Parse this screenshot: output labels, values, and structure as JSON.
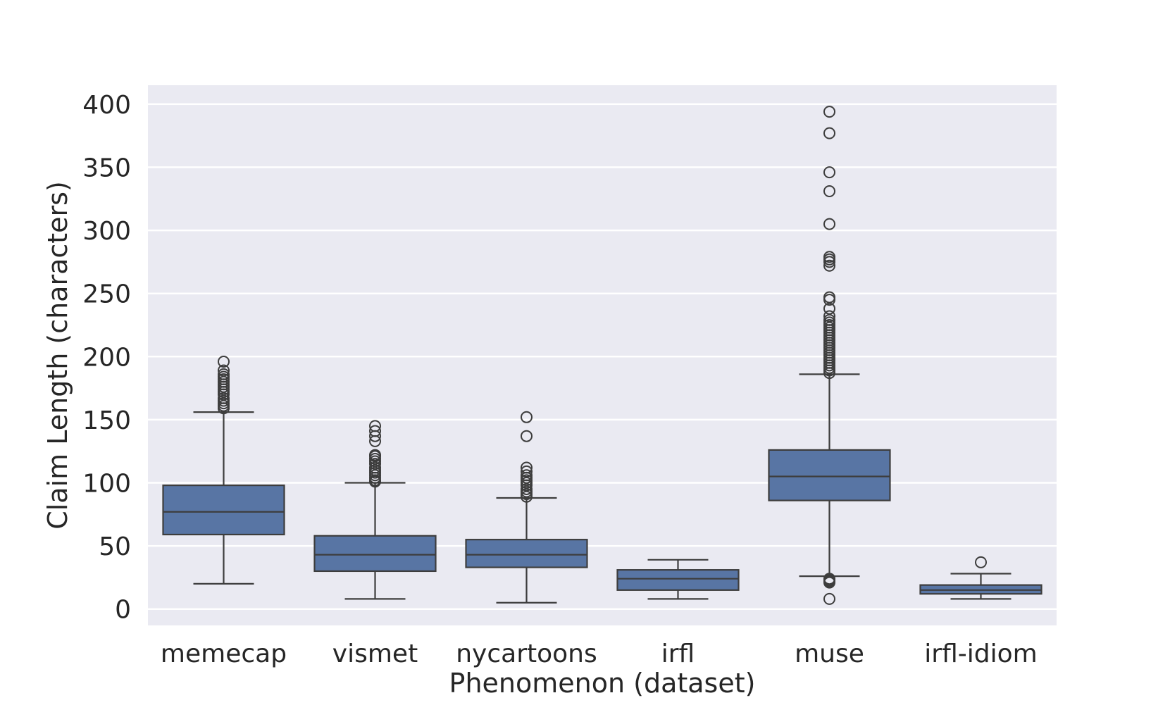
{
  "chart_data": {
    "type": "boxplot",
    "title": "",
    "xlabel": "Phenomenon (dataset)",
    "ylabel": "Claim Length (characters)",
    "ylim": [
      -13,
      415
    ],
    "yticks": [
      0,
      50,
      100,
      150,
      200,
      250,
      300,
      350,
      400
    ],
    "grid": true,
    "colors": {
      "background": "#eaeaf2",
      "box_fill": "#5875a4",
      "line": "#3d3d3d",
      "grid": "#ffffff"
    },
    "categories": [
      "memecap",
      "vismet",
      "nycartoons",
      "irfl",
      "muse",
      "irfl-idiom"
    ],
    "boxes": [
      {
        "category": "memecap",
        "whisker_low": 20,
        "q1": 59,
        "median": 77,
        "q3": 98,
        "whisker_high": 156,
        "outliers": [
          159,
          161,
          163,
          165,
          167,
          170,
          172,
          174,
          176,
          178,
          180,
          182,
          184,
          186,
          189,
          196
        ]
      },
      {
        "category": "vismet",
        "whisker_low": 8,
        "q1": 30,
        "median": 43,
        "q3": 58,
        "whisker_high": 100,
        "outliers": [
          101,
          102,
          104,
          106,
          108,
          110,
          112,
          115,
          117,
          119,
          121,
          122,
          133,
          137,
          141,
          145
        ]
      },
      {
        "category": "nycartoons",
        "whisker_low": 5,
        "q1": 33,
        "median": 43,
        "q3": 55,
        "whisker_high": 88,
        "outliers": [
          89,
          91,
          93,
          95,
          98,
          100,
          102,
          104,
          106,
          109,
          112,
          137,
          152
        ]
      },
      {
        "category": "irfl",
        "whisker_low": 8,
        "q1": 15,
        "median": 24,
        "q3": 31,
        "whisker_high": 39,
        "outliers": []
      },
      {
        "category": "muse",
        "whisker_low": 26,
        "q1": 86,
        "median": 105,
        "q3": 126,
        "whisker_high": 186,
        "outliers": [
          8,
          21,
          22,
          23,
          24,
          187,
          189,
          191,
          193,
          195,
          197,
          199,
          201,
          203,
          205,
          207,
          209,
          211,
          213,
          215,
          217,
          219,
          221,
          223,
          225,
          227,
          229,
          232,
          238,
          245,
          247,
          272,
          275,
          277,
          279,
          305,
          331,
          346,
          377,
          394
        ]
      },
      {
        "category": "irfl-idiom",
        "whisker_low": 8,
        "q1": 12,
        "median": 15,
        "q3": 19,
        "whisker_high": 28,
        "outliers": [
          37
        ]
      }
    ]
  }
}
